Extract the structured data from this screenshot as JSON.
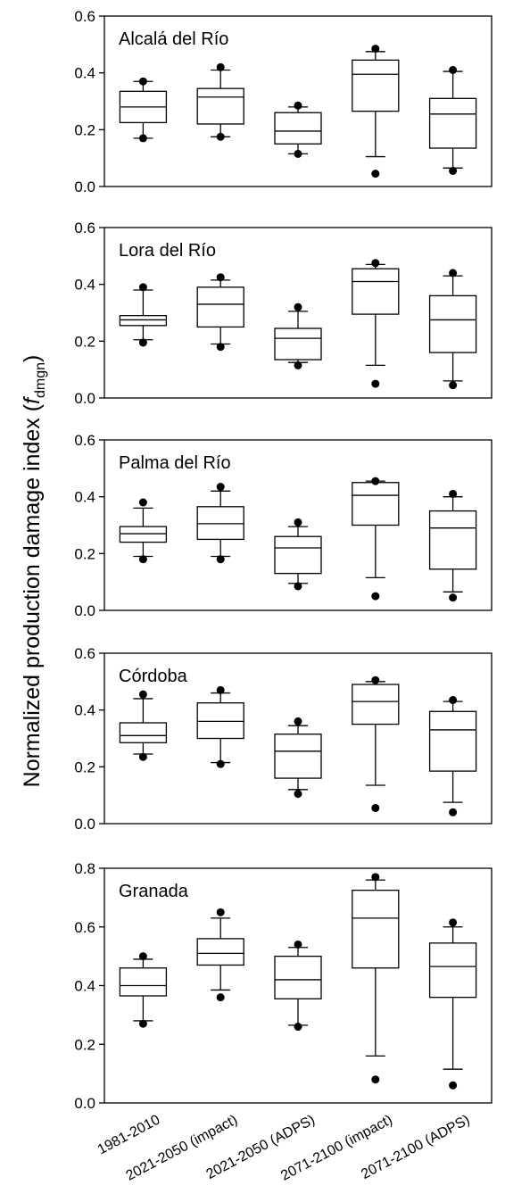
{
  "chart_data": {
    "type": "box",
    "ylabel_main": "Normalized production damage index (",
    "ylabel_var": "f",
    "ylabel_sub": "dmgn",
    "ylabel_close": ")",
    "categories": [
      "1981-2010",
      "2021-2050 (impact)",
      "2021-2050 (ADPS)",
      "2071-2100 (impact)",
      "2071-2100 (ADPS)"
    ],
    "panels": [
      {
        "title": "Alcalá del Río",
        "ylim": [
          0,
          0.6
        ],
        "yticks": [
          "0.0",
          "0.2",
          "0.4",
          "0.6"
        ],
        "boxes": [
          {
            "whisker_low": 0.17,
            "q1": 0.225,
            "median": 0.28,
            "q3": 0.335,
            "whisker_high": 0.37,
            "out_low": 0.17,
            "out_high": 0.37
          },
          {
            "whisker_low": 0.175,
            "q1": 0.22,
            "median": 0.315,
            "q3": 0.345,
            "whisker_high": 0.41,
            "out_low": 0.175,
            "out_high": 0.42
          },
          {
            "whisker_low": 0.115,
            "q1": 0.15,
            "median": 0.195,
            "q3": 0.26,
            "whisker_high": 0.28,
            "out_low": 0.115,
            "out_high": 0.285
          },
          {
            "whisker_low": 0.105,
            "q1": 0.265,
            "median": 0.395,
            "q3": 0.445,
            "whisker_high": 0.475,
            "out_low": 0.045,
            "out_high": 0.485
          },
          {
            "whisker_low": 0.065,
            "q1": 0.135,
            "median": 0.255,
            "q3": 0.31,
            "whisker_high": 0.405,
            "out_low": 0.055,
            "out_high": 0.41
          }
        ]
      },
      {
        "title": "Lora del Río",
        "ylim": [
          0,
          0.6
        ],
        "yticks": [
          "0.0",
          "0.2",
          "0.4",
          "0.6"
        ],
        "boxes": [
          {
            "whisker_low": 0.205,
            "q1": 0.255,
            "median": 0.275,
            "q3": 0.29,
            "whisker_high": 0.38,
            "out_low": 0.195,
            "out_high": 0.39
          },
          {
            "whisker_low": 0.19,
            "q1": 0.25,
            "median": 0.33,
            "q3": 0.39,
            "whisker_high": 0.415,
            "out_low": 0.18,
            "out_high": 0.425
          },
          {
            "whisker_low": 0.125,
            "q1": 0.135,
            "median": 0.21,
            "q3": 0.245,
            "whisker_high": 0.305,
            "out_low": 0.115,
            "out_high": 0.32
          },
          {
            "whisker_low": 0.115,
            "q1": 0.295,
            "median": 0.41,
            "q3": 0.455,
            "whisker_high": 0.47,
            "out_low": 0.05,
            "out_high": 0.475
          },
          {
            "whisker_low": 0.06,
            "q1": 0.16,
            "median": 0.275,
            "q3": 0.36,
            "whisker_high": 0.43,
            "out_low": 0.045,
            "out_high": 0.44
          }
        ]
      },
      {
        "title": "Palma del Río",
        "ylim": [
          0,
          0.6
        ],
        "yticks": [
          "0.0",
          "0.2",
          "0.4",
          "0.6"
        ],
        "boxes": [
          {
            "whisker_low": 0.19,
            "q1": 0.24,
            "median": 0.27,
            "q3": 0.295,
            "whisker_high": 0.36,
            "out_low": 0.18,
            "out_high": 0.38
          },
          {
            "whisker_low": 0.19,
            "q1": 0.25,
            "median": 0.305,
            "q3": 0.365,
            "whisker_high": 0.42,
            "out_low": 0.18,
            "out_high": 0.435
          },
          {
            "whisker_low": 0.095,
            "q1": 0.13,
            "median": 0.22,
            "q3": 0.26,
            "whisker_high": 0.295,
            "out_low": 0.085,
            "out_high": 0.31
          },
          {
            "whisker_low": 0.115,
            "q1": 0.3,
            "median": 0.405,
            "q3": 0.45,
            "whisker_high": 0.455,
            "out_low": 0.05,
            "out_high": 0.455
          },
          {
            "whisker_low": 0.065,
            "q1": 0.145,
            "median": 0.29,
            "q3": 0.35,
            "whisker_high": 0.4,
            "out_low": 0.045,
            "out_high": 0.41
          }
        ]
      },
      {
        "title": "Córdoba",
        "ylim": [
          0,
          0.6
        ],
        "yticks": [
          "0.0",
          "0.2",
          "0.4",
          "0.6"
        ],
        "boxes": [
          {
            "whisker_low": 0.245,
            "q1": 0.285,
            "median": 0.31,
            "q3": 0.355,
            "whisker_high": 0.44,
            "out_low": 0.235,
            "out_high": 0.455
          },
          {
            "whisker_low": 0.215,
            "q1": 0.3,
            "median": 0.36,
            "q3": 0.425,
            "whisker_high": 0.46,
            "out_low": 0.21,
            "out_high": 0.47
          },
          {
            "whisker_low": 0.12,
            "q1": 0.16,
            "median": 0.255,
            "q3": 0.315,
            "whisker_high": 0.345,
            "out_low": 0.105,
            "out_high": 0.36
          },
          {
            "whisker_low": 0.135,
            "q1": 0.35,
            "median": 0.43,
            "q3": 0.49,
            "whisker_high": 0.5,
            "out_low": 0.055,
            "out_high": 0.505
          },
          {
            "whisker_low": 0.075,
            "q1": 0.185,
            "median": 0.33,
            "q3": 0.395,
            "whisker_high": 0.43,
            "out_low": 0.04,
            "out_high": 0.435
          }
        ]
      },
      {
        "title": "Granada",
        "ylim": [
          0,
          0.8
        ],
        "yticks": [
          "0.0",
          "0.2",
          "0.4",
          "0.6",
          "0.8"
        ],
        "boxes": [
          {
            "whisker_low": 0.28,
            "q1": 0.365,
            "median": 0.4,
            "q3": 0.46,
            "whisker_high": 0.49,
            "out_low": 0.27,
            "out_high": 0.5
          },
          {
            "whisker_low": 0.385,
            "q1": 0.47,
            "median": 0.51,
            "q3": 0.56,
            "whisker_high": 0.63,
            "out_low": 0.36,
            "out_high": 0.65
          },
          {
            "whisker_low": 0.265,
            "q1": 0.355,
            "median": 0.42,
            "q3": 0.5,
            "whisker_high": 0.53,
            "out_low": 0.26,
            "out_high": 0.54
          },
          {
            "whisker_low": 0.16,
            "q1": 0.46,
            "median": 0.63,
            "q3": 0.725,
            "whisker_high": 0.76,
            "out_low": 0.08,
            "out_high": 0.77
          },
          {
            "whisker_low": 0.115,
            "q1": 0.36,
            "median": 0.465,
            "q3": 0.545,
            "whisker_high": 0.6,
            "out_low": 0.06,
            "out_high": 0.615
          }
        ]
      }
    ]
  }
}
